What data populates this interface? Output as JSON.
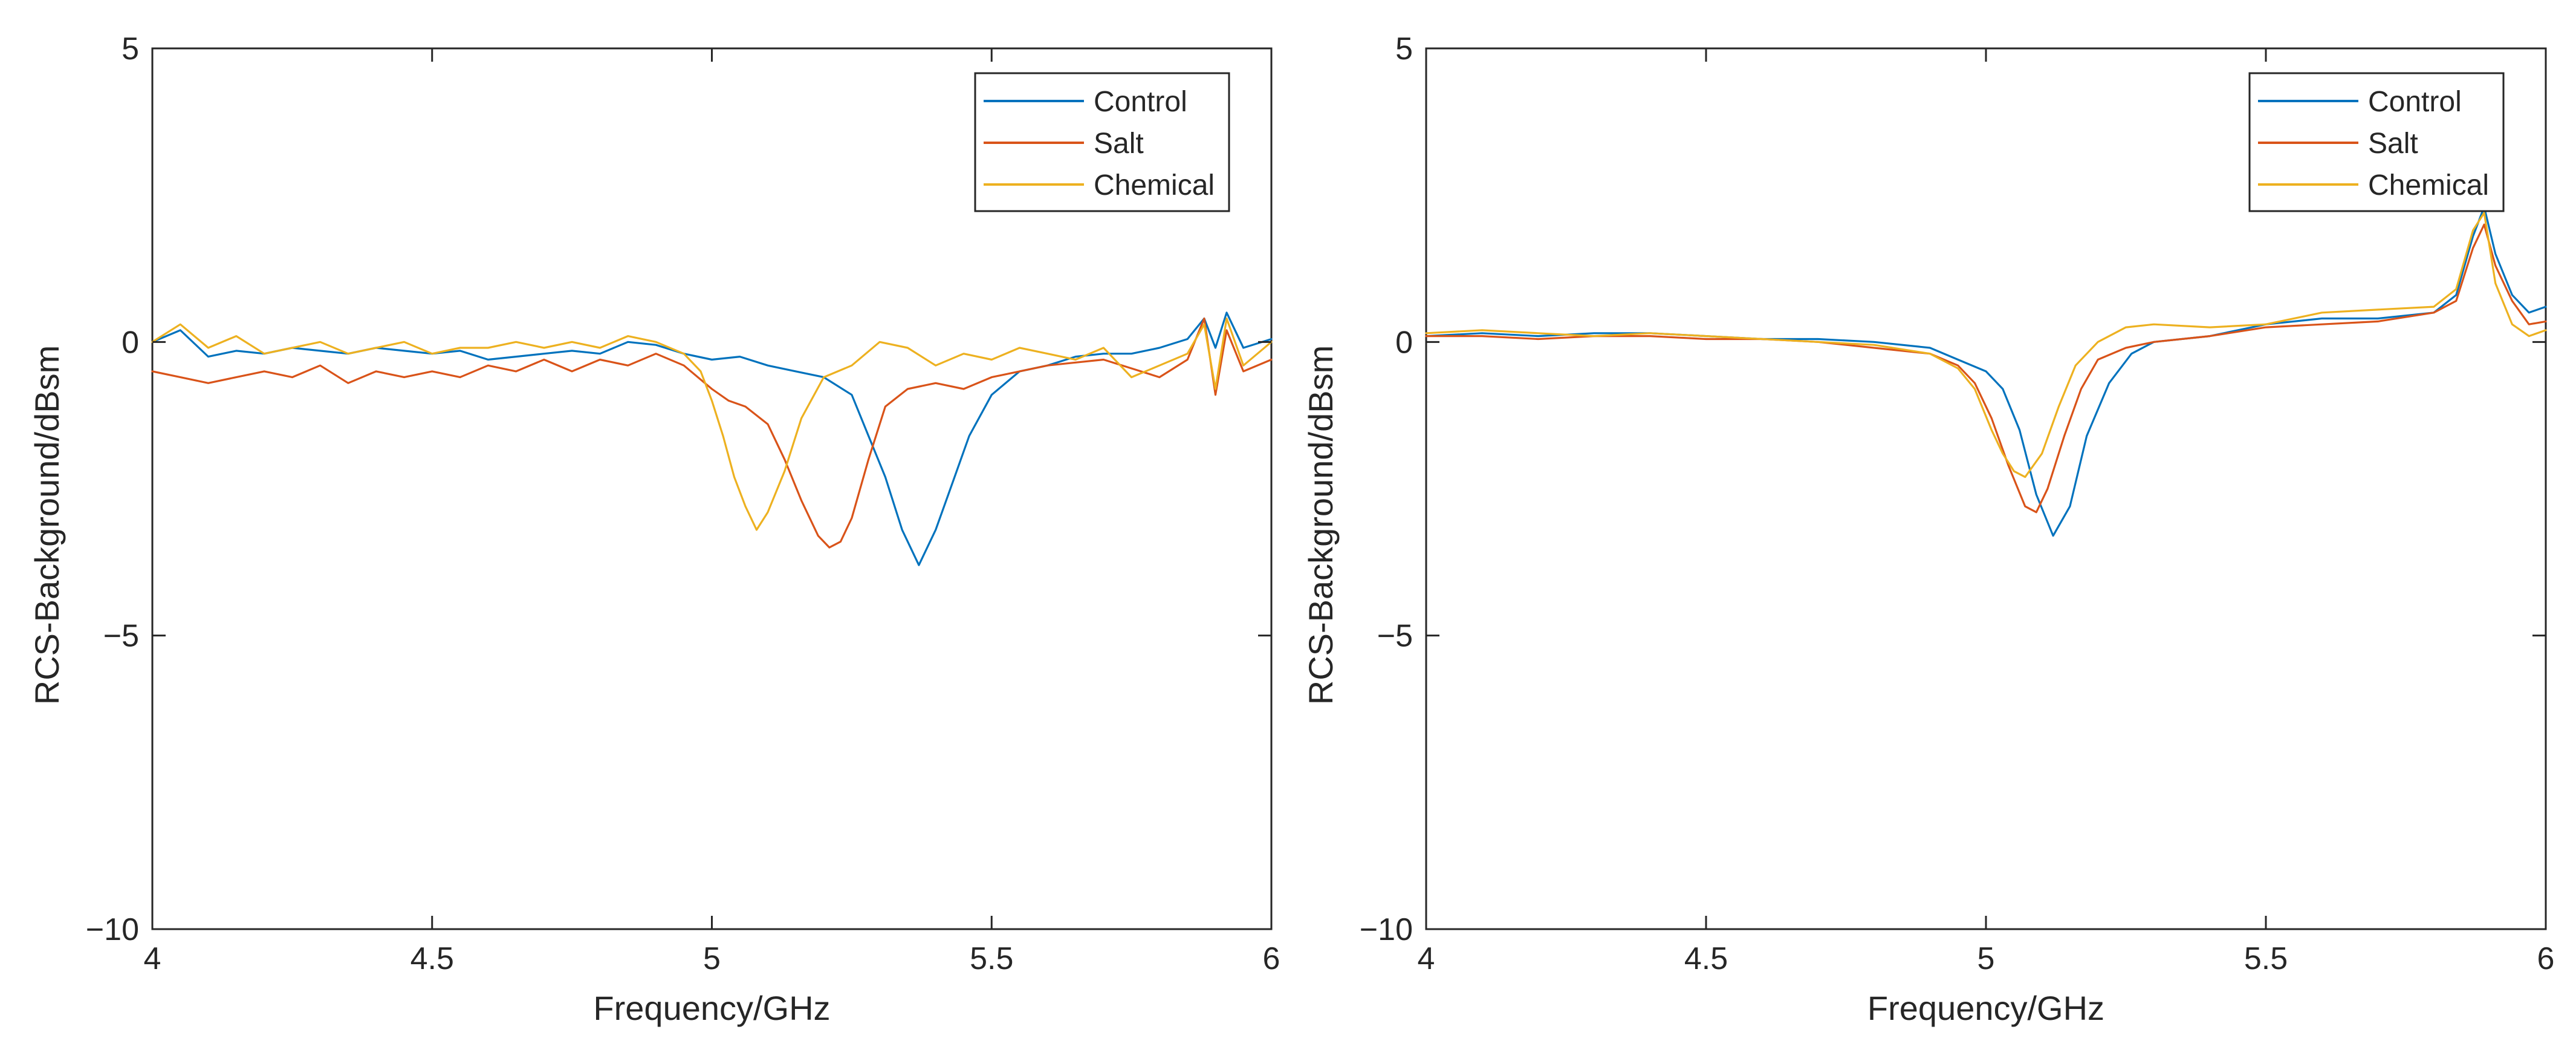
{
  "chart_data": [
    {
      "type": "line",
      "panel": "left",
      "title": "",
      "xlabel": "Frequency/GHz",
      "ylabel": "RCS-Background/dBsm",
      "xlim": [
        4,
        6
      ],
      "ylim": [
        -10,
        5
      ],
      "xticks": [
        4,
        4.5,
        5,
        5.5,
        6
      ],
      "xtick_labels": [
        "4",
        "4.5",
        "5",
        "5.5",
        "6"
      ],
      "yticks": [
        -10,
        -5,
        0,
        5
      ],
      "ytick_labels": [
        "−10",
        "−5",
        "0",
        "5"
      ],
      "legend_position": "top-right",
      "series": [
        {
          "name": "Control",
          "color": "#0072BD",
          "x": [
            4.0,
            4.05,
            4.1,
            4.15,
            4.2,
            4.25,
            4.3,
            4.35,
            4.4,
            4.45,
            4.5,
            4.55,
            4.6,
            4.65,
            4.7,
            4.75,
            4.8,
            4.85,
            4.9,
            4.95,
            5.0,
            5.05,
            5.1,
            5.15,
            5.2,
            5.25,
            5.28,
            5.31,
            5.34,
            5.37,
            5.4,
            5.43,
            5.46,
            5.5,
            5.55,
            5.6,
            5.65,
            5.7,
            5.75,
            5.8,
            5.85,
            5.88,
            5.9,
            5.92,
            5.95,
            6.0
          ],
          "y": [
            0.0,
            0.2,
            -0.25,
            -0.15,
            -0.2,
            -0.1,
            -0.15,
            -0.2,
            -0.1,
            -0.15,
            -0.2,
            -0.15,
            -0.3,
            -0.25,
            -0.2,
            -0.15,
            -0.2,
            0.0,
            -0.05,
            -0.2,
            -0.3,
            -0.25,
            -0.4,
            -0.5,
            -0.6,
            -0.9,
            -1.6,
            -2.3,
            -3.2,
            -3.8,
            -3.2,
            -2.4,
            -1.6,
            -0.9,
            -0.5,
            -0.4,
            -0.25,
            -0.2,
            -0.2,
            -0.1,
            0.05,
            0.4,
            -0.1,
            0.5,
            -0.1,
            0.05
          ]
        },
        {
          "name": "Salt",
          "color": "#D95319",
          "x": [
            4.0,
            4.05,
            4.1,
            4.15,
            4.2,
            4.25,
            4.3,
            4.35,
            4.4,
            4.45,
            4.5,
            4.55,
            4.6,
            4.65,
            4.7,
            4.75,
            4.8,
            4.85,
            4.9,
            4.95,
            5.0,
            5.03,
            5.06,
            5.1,
            5.13,
            5.16,
            5.19,
            5.21,
            5.23,
            5.25,
            5.28,
            5.31,
            5.35,
            5.4,
            5.45,
            5.5,
            5.55,
            5.6,
            5.65,
            5.7,
            5.75,
            5.8,
            5.85,
            5.88,
            5.9,
            5.92,
            5.95,
            6.0
          ],
          "y": [
            -0.5,
            -0.6,
            -0.7,
            -0.6,
            -0.5,
            -0.6,
            -0.4,
            -0.7,
            -0.5,
            -0.6,
            -0.5,
            -0.6,
            -0.4,
            -0.5,
            -0.3,
            -0.5,
            -0.3,
            -0.4,
            -0.2,
            -0.4,
            -0.8,
            -1.0,
            -1.1,
            -1.4,
            -2.0,
            -2.7,
            -3.3,
            -3.5,
            -3.4,
            -3.0,
            -2.0,
            -1.1,
            -0.8,
            -0.7,
            -0.8,
            -0.6,
            -0.5,
            -0.4,
            -0.35,
            -0.3,
            -0.45,
            -0.6,
            -0.3,
            0.4,
            -0.9,
            0.2,
            -0.5,
            -0.3
          ]
        },
        {
          "name": "Chemical",
          "color": "#EDB120",
          "x": [
            4.0,
            4.05,
            4.1,
            4.15,
            4.2,
            4.25,
            4.3,
            4.35,
            4.4,
            4.45,
            4.5,
            4.55,
            4.6,
            4.65,
            4.7,
            4.75,
            4.8,
            4.85,
            4.9,
            4.95,
            4.98,
            5.0,
            5.02,
            5.04,
            5.06,
            5.08,
            5.1,
            5.13,
            5.16,
            5.2,
            5.25,
            5.3,
            5.35,
            5.4,
            5.45,
            5.5,
            5.55,
            5.6,
            5.65,
            5.7,
            5.75,
            5.8,
            5.85,
            5.88,
            5.9,
            5.92,
            5.95,
            6.0
          ],
          "y": [
            0.0,
            0.3,
            -0.1,
            0.1,
            -0.2,
            -0.1,
            0.0,
            -0.2,
            -0.1,
            0.0,
            -0.2,
            -0.1,
            -0.1,
            0.0,
            -0.1,
            0.0,
            -0.1,
            0.1,
            0.0,
            -0.2,
            -0.5,
            -1.0,
            -1.6,
            -2.3,
            -2.8,
            -3.2,
            -2.9,
            -2.2,
            -1.3,
            -0.6,
            -0.4,
            0.0,
            -0.1,
            -0.4,
            -0.2,
            -0.3,
            -0.1,
            -0.2,
            -0.3,
            -0.1,
            -0.6,
            -0.4,
            -0.2,
            0.3,
            -0.8,
            0.4,
            -0.4,
            0.0
          ]
        }
      ]
    },
    {
      "type": "line",
      "panel": "right",
      "title": "",
      "xlabel": "Frequency/GHz",
      "ylabel": "RCS-Background/dBsm",
      "xlim": [
        4,
        6
      ],
      "ylim": [
        -10,
        5
      ],
      "xticks": [
        4,
        4.5,
        5,
        5.5,
        6
      ],
      "xtick_labels": [
        "4",
        "4.5",
        "5",
        "5.5",
        "6"
      ],
      "yticks": [
        -10,
        -5,
        0,
        5
      ],
      "ytick_labels": [
        "−10",
        "−5",
        "0",
        "5"
      ],
      "legend_position": "top-right",
      "series": [
        {
          "name": "Control",
          "color": "#0072BD",
          "x": [
            4.0,
            4.1,
            4.2,
            4.3,
            4.4,
            4.5,
            4.6,
            4.7,
            4.8,
            4.9,
            4.95,
            5.0,
            5.03,
            5.06,
            5.09,
            5.12,
            5.15,
            5.18,
            5.22,
            5.26,
            5.3,
            5.4,
            5.5,
            5.6,
            5.7,
            5.8,
            5.84,
            5.87,
            5.89,
            5.91,
            5.94,
            5.97,
            6.0
          ],
          "y": [
            0.1,
            0.15,
            0.1,
            0.15,
            0.15,
            0.1,
            0.05,
            0.05,
            0.0,
            -0.1,
            -0.3,
            -0.5,
            -0.8,
            -1.5,
            -2.6,
            -3.3,
            -2.8,
            -1.6,
            -0.7,
            -0.2,
            0.0,
            0.1,
            0.3,
            0.4,
            0.4,
            0.5,
            0.8,
            1.8,
            2.3,
            1.5,
            0.8,
            0.5,
            0.6
          ]
        },
        {
          "name": "Salt",
          "color": "#D95319",
          "x": [
            4.0,
            4.1,
            4.2,
            4.3,
            4.4,
            4.5,
            4.6,
            4.7,
            4.8,
            4.9,
            4.95,
            4.98,
            5.01,
            5.04,
            5.07,
            5.09,
            5.11,
            5.14,
            5.17,
            5.2,
            5.25,
            5.3,
            5.4,
            5.5,
            5.6,
            5.7,
            5.8,
            5.84,
            5.87,
            5.89,
            5.91,
            5.94,
            5.97,
            6.0
          ],
          "y": [
            0.1,
            0.1,
            0.05,
            0.1,
            0.1,
            0.05,
            0.05,
            0.0,
            -0.1,
            -0.2,
            -0.4,
            -0.7,
            -1.3,
            -2.1,
            -2.8,
            -2.9,
            -2.5,
            -1.6,
            -0.8,
            -0.3,
            -0.1,
            0.0,
            0.1,
            0.25,
            0.3,
            0.35,
            0.5,
            0.7,
            1.6,
            2.0,
            1.3,
            0.7,
            0.3,
            0.35
          ]
        },
        {
          "name": "Chemical",
          "color": "#EDB120",
          "x": [
            4.0,
            4.1,
            4.2,
            4.3,
            4.4,
            4.5,
            4.6,
            4.7,
            4.8,
            4.9,
            4.95,
            4.98,
            5.01,
            5.03,
            5.05,
            5.07,
            5.1,
            5.13,
            5.16,
            5.2,
            5.25,
            5.3,
            5.4,
            5.5,
            5.6,
            5.7,
            5.8,
            5.84,
            5.87,
            5.89,
            5.91,
            5.94,
            5.97,
            6.0
          ],
          "y": [
            0.15,
            0.2,
            0.15,
            0.1,
            0.15,
            0.1,
            0.05,
            0.0,
            -0.05,
            -0.2,
            -0.45,
            -0.8,
            -1.5,
            -1.9,
            -2.2,
            -2.3,
            -1.9,
            -1.1,
            -0.4,
            0.0,
            0.25,
            0.3,
            0.25,
            0.3,
            0.5,
            0.55,
            0.6,
            0.9,
            1.9,
            2.2,
            1.0,
            0.3,
            0.1,
            0.2
          ]
        }
      ]
    }
  ]
}
